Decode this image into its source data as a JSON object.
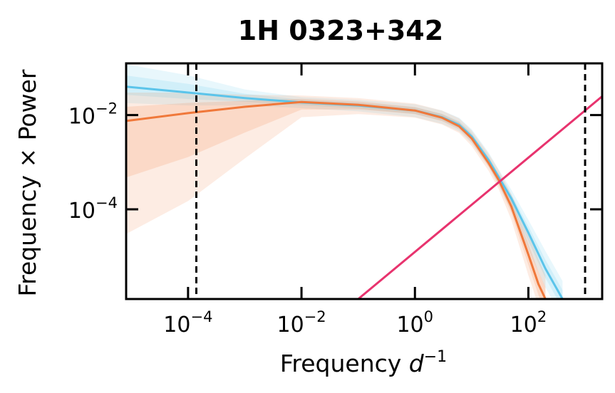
{
  "chart_data": {
    "type": "line",
    "title": "1H 0323+342",
    "xlabel_main": "Frequency ",
    "xlabel_italic": "d",
    "xlabel_sup": "−1",
    "ylabel": "Frequency × Power",
    "x_scale": "log",
    "y_scale": "log",
    "xlim": [
      8.1e-06,
      2000
    ],
    "ylim": [
      1.25e-06,
      0.125
    ],
    "x_ticks": [
      {
        "value": 0.0001,
        "base": "10",
        "exp": "−4"
      },
      {
        "value": 0.01,
        "base": "10",
        "exp": "−2"
      },
      {
        "value": 1,
        "base": "10",
        "exp": "0"
      },
      {
        "value": 100,
        "base": "10",
        "exp": "2"
      }
    ],
    "y_ticks": [
      {
        "value": 0.0001,
        "base": "10",
        "exp": "−4"
      },
      {
        "value": 0.01,
        "base": "10",
        "exp": "−2"
      }
    ],
    "vlines": [
      0.00014,
      1000
    ],
    "colors": {
      "blue": "#5bc4ea",
      "orange": "#f0783a",
      "pink": "#e8336e"
    },
    "series": [
      {
        "color_key": "blue",
        "x": [
          8.1e-06,
          0.0001,
          0.001,
          0.01,
          0.1,
          1,
          3,
          6,
          10,
          20,
          30,
          50,
          100,
          200,
          400
        ],
        "y": [
          0.04,
          0.03,
          0.023,
          0.0185,
          0.016,
          0.0125,
          0.009,
          0.0062,
          0.0035,
          0.0011,
          0.00048,
          0.00017,
          3.2e-05,
          5.5e-06,
          1.25e-06
        ],
        "band_lo": [
          0.018,
          0.016,
          0.016,
          0.014,
          0.012,
          0.009,
          0.0065,
          0.0045,
          0.0025,
          0.0008,
          0.00032,
          9.5e-05,
          1.4e-05,
          2.2e-06,
          5e-07
        ],
        "band_hi": [
          0.12,
          0.07,
          0.035,
          0.024,
          0.021,
          0.017,
          0.0125,
          0.0088,
          0.005,
          0.0016,
          0.0007,
          0.00026,
          6e-05,
          1.3e-05,
          3e-06
        ]
      },
      {
        "color_key": "orange",
        "x": [
          8.1e-06,
          0.0001,
          0.001,
          0.01,
          0.1,
          1,
          3,
          6,
          10,
          20,
          30,
          50,
          100,
          150,
          200
        ],
        "y": [
          0.0075,
          0.011,
          0.015,
          0.019,
          0.0165,
          0.0125,
          0.0088,
          0.0058,
          0.0032,
          0.00095,
          0.00042,
          0.000115,
          1.1e-05,
          2.6e-06,
          1.25e-06
        ],
        "band_lo": [
          3e-05,
          0.00015,
          0.0012,
          0.009,
          0.0105,
          0.0088,
          0.0063,
          0.0042,
          0.0022,
          0.00065,
          0.00027,
          6e-05,
          4e-06,
          9e-07,
          4e-07
        ],
        "band_hi": [
          0.03,
          0.03,
          0.027,
          0.026,
          0.023,
          0.0175,
          0.0125,
          0.0085,
          0.0047,
          0.0015,
          0.00068,
          0.00021,
          3.2e-05,
          9e-06,
          4e-06
        ]
      },
      {
        "color_key": "pink",
        "x": [
          0.1,
          2000
        ],
        "y": [
          1.25e-06,
          0.025
        ]
      }
    ]
  }
}
